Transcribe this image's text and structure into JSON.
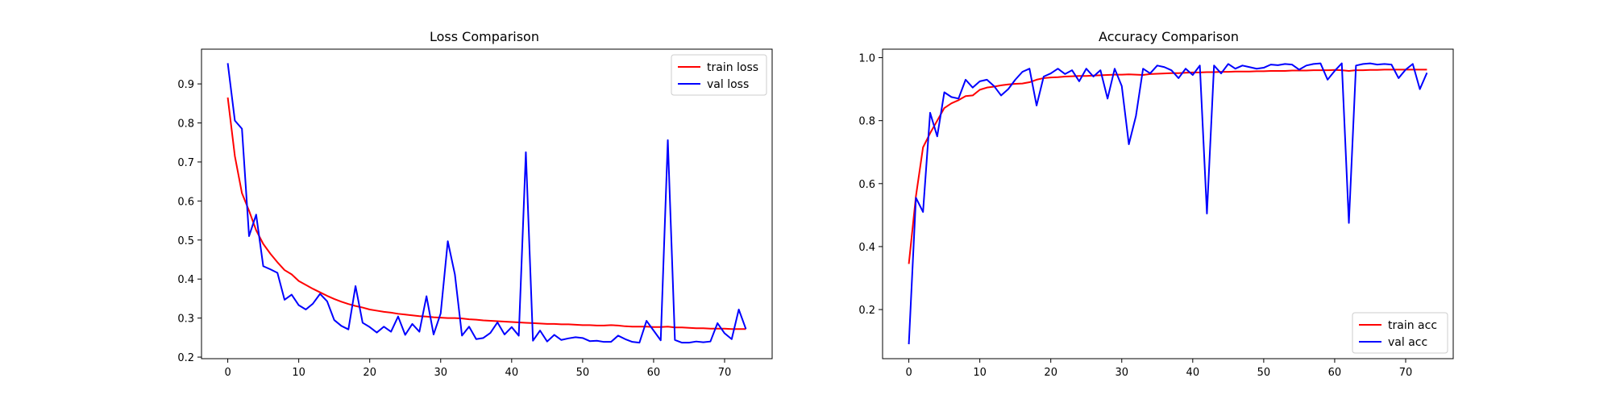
{
  "chart_data": [
    {
      "type": "line",
      "title": "Loss Comparison",
      "xlabel": "",
      "ylabel": "",
      "xlim": [
        -3.7,
        76.7
      ],
      "ylim": [
        0.196,
        0.989
      ],
      "xticks": [
        0,
        10,
        20,
        30,
        40,
        50,
        60,
        70
      ],
      "yticks": [
        0.2,
        0.3,
        0.4,
        0.5,
        0.6,
        0.7,
        0.8,
        0.9
      ],
      "ytick_decimals": 1,
      "grid": false,
      "legend_position": "top-right",
      "x": [
        0,
        1,
        2,
        3,
        4,
        5,
        6,
        7,
        8,
        9,
        10,
        11,
        12,
        13,
        14,
        15,
        16,
        17,
        18,
        19,
        20,
        21,
        22,
        23,
        24,
        25,
        26,
        27,
        28,
        29,
        30,
        31,
        32,
        33,
        34,
        35,
        36,
        37,
        38,
        39,
        40,
        41,
        42,
        43,
        44,
        45,
        46,
        47,
        48,
        49,
        50,
        51,
        52,
        53,
        54,
        55,
        56,
        57,
        58,
        59,
        60,
        61,
        62,
        63,
        64,
        65,
        66,
        67,
        68,
        69,
        70,
        71,
        72,
        73
      ],
      "series": [
        {
          "name": "train loss",
          "color": "#ff0000",
          "values": [
            0.865,
            0.715,
            0.62,
            0.575,
            0.525,
            0.49,
            0.465,
            0.443,
            0.423,
            0.412,
            0.395,
            0.385,
            0.375,
            0.366,
            0.357,
            0.349,
            0.342,
            0.336,
            0.331,
            0.327,
            0.322,
            0.319,
            0.316,
            0.314,
            0.311,
            0.309,
            0.307,
            0.305,
            0.304,
            0.302,
            0.301,
            0.3,
            0.3,
            0.299,
            0.297,
            0.296,
            0.294,
            0.293,
            0.292,
            0.291,
            0.29,
            0.289,
            0.288,
            0.287,
            0.286,
            0.285,
            0.285,
            0.284,
            0.284,
            0.283,
            0.282,
            0.282,
            0.281,
            0.281,
            0.282,
            0.281,
            0.279,
            0.278,
            0.278,
            0.278,
            0.277,
            0.277,
            0.278,
            0.276,
            0.276,
            0.275,
            0.274,
            0.274,
            0.273,
            0.273,
            0.273,
            0.272,
            0.272,
            0.272
          ]
        },
        {
          "name": "val loss",
          "color": "#0000ff",
          "values": [
            0.953,
            0.806,
            0.785,
            0.51,
            0.565,
            0.433,
            0.425,
            0.416,
            0.347,
            0.36,
            0.333,
            0.322,
            0.337,
            0.362,
            0.343,
            0.295,
            0.28,
            0.271,
            0.382,
            0.288,
            0.277,
            0.263,
            0.278,
            0.265,
            0.304,
            0.257,
            0.285,
            0.265,
            0.356,
            0.258,
            0.312,
            0.497,
            0.412,
            0.255,
            0.278,
            0.246,
            0.249,
            0.262,
            0.289,
            0.258,
            0.277,
            0.255,
            0.725,
            0.242,
            0.268,
            0.24,
            0.257,
            0.244,
            0.248,
            0.251,
            0.249,
            0.241,
            0.242,
            0.239,
            0.239,
            0.255,
            0.246,
            0.239,
            0.237,
            0.293,
            0.268,
            0.243,
            0.756,
            0.244,
            0.237,
            0.237,
            0.24,
            0.238,
            0.24,
            0.287,
            0.261,
            0.246,
            0.322,
            0.272
          ]
        }
      ]
    },
    {
      "type": "line",
      "title": "Accuracy Comparison",
      "xlabel": "",
      "ylabel": "",
      "xlim": [
        -3.7,
        76.7
      ],
      "ylim": [
        0.044,
        1.027
      ],
      "xticks": [
        0,
        10,
        20,
        30,
        40,
        50,
        60,
        70
      ],
      "yticks": [
        0.2,
        0.4,
        0.6,
        0.8,
        1.0
      ],
      "ytick_decimals": 1,
      "grid": false,
      "legend_position": "bottom-right",
      "x": [
        0,
        1,
        2,
        3,
        4,
        5,
        6,
        7,
        8,
        9,
        10,
        11,
        12,
        13,
        14,
        15,
        16,
        17,
        18,
        19,
        20,
        21,
        22,
        23,
        24,
        25,
        26,
        27,
        28,
        29,
        30,
        31,
        32,
        33,
        34,
        35,
        36,
        37,
        38,
        39,
        40,
        41,
        42,
        43,
        44,
        45,
        46,
        47,
        48,
        49,
        50,
        51,
        52,
        53,
        54,
        55,
        56,
        57,
        58,
        59,
        60,
        61,
        62,
        63,
        64,
        65,
        66,
        67,
        68,
        69,
        70,
        71,
        72,
        73
      ],
      "series": [
        {
          "name": "train acc",
          "color": "#ff0000",
          "values": [
            0.345,
            0.56,
            0.715,
            0.76,
            0.8,
            0.84,
            0.855,
            0.865,
            0.878,
            0.88,
            0.898,
            0.905,
            0.908,
            0.912,
            0.915,
            0.917,
            0.918,
            0.922,
            0.93,
            0.935,
            0.937,
            0.938,
            0.94,
            0.941,
            0.942,
            0.942,
            0.943,
            0.944,
            0.945,
            0.946,
            0.946,
            0.947,
            0.946,
            0.945,
            0.948,
            0.949,
            0.95,
            0.951,
            0.951,
            0.952,
            0.953,
            0.953,
            0.954,
            0.954,
            0.955,
            0.955,
            0.956,
            0.956,
            0.956,
            0.957,
            0.957,
            0.958,
            0.958,
            0.958,
            0.959,
            0.959,
            0.959,
            0.96,
            0.96,
            0.96,
            0.961,
            0.96,
            0.958,
            0.96,
            0.96,
            0.961,
            0.961,
            0.962,
            0.962,
            0.962,
            0.962,
            0.962,
            0.962,
            0.962
          ]
        },
        {
          "name": "val acc",
          "color": "#0000ff",
          "values": [
            0.09,
            0.555,
            0.51,
            0.825,
            0.75,
            0.89,
            0.875,
            0.87,
            0.93,
            0.905,
            0.925,
            0.93,
            0.91,
            0.88,
            0.9,
            0.93,
            0.955,
            0.965,
            0.848,
            0.94,
            0.95,
            0.965,
            0.948,
            0.96,
            0.925,
            0.965,
            0.94,
            0.96,
            0.87,
            0.965,
            0.91,
            0.725,
            0.815,
            0.965,
            0.95,
            0.975,
            0.97,
            0.96,
            0.935,
            0.965,
            0.945,
            0.975,
            0.505,
            0.975,
            0.95,
            0.98,
            0.965,
            0.975,
            0.97,
            0.965,
            0.968,
            0.978,
            0.976,
            0.98,
            0.978,
            0.962,
            0.975,
            0.98,
            0.982,
            0.93,
            0.958,
            0.982,
            0.475,
            0.975,
            0.98,
            0.982,
            0.978,
            0.98,
            0.978,
            0.935,
            0.962,
            0.98,
            0.9,
            0.952
          ]
        }
      ]
    }
  ]
}
